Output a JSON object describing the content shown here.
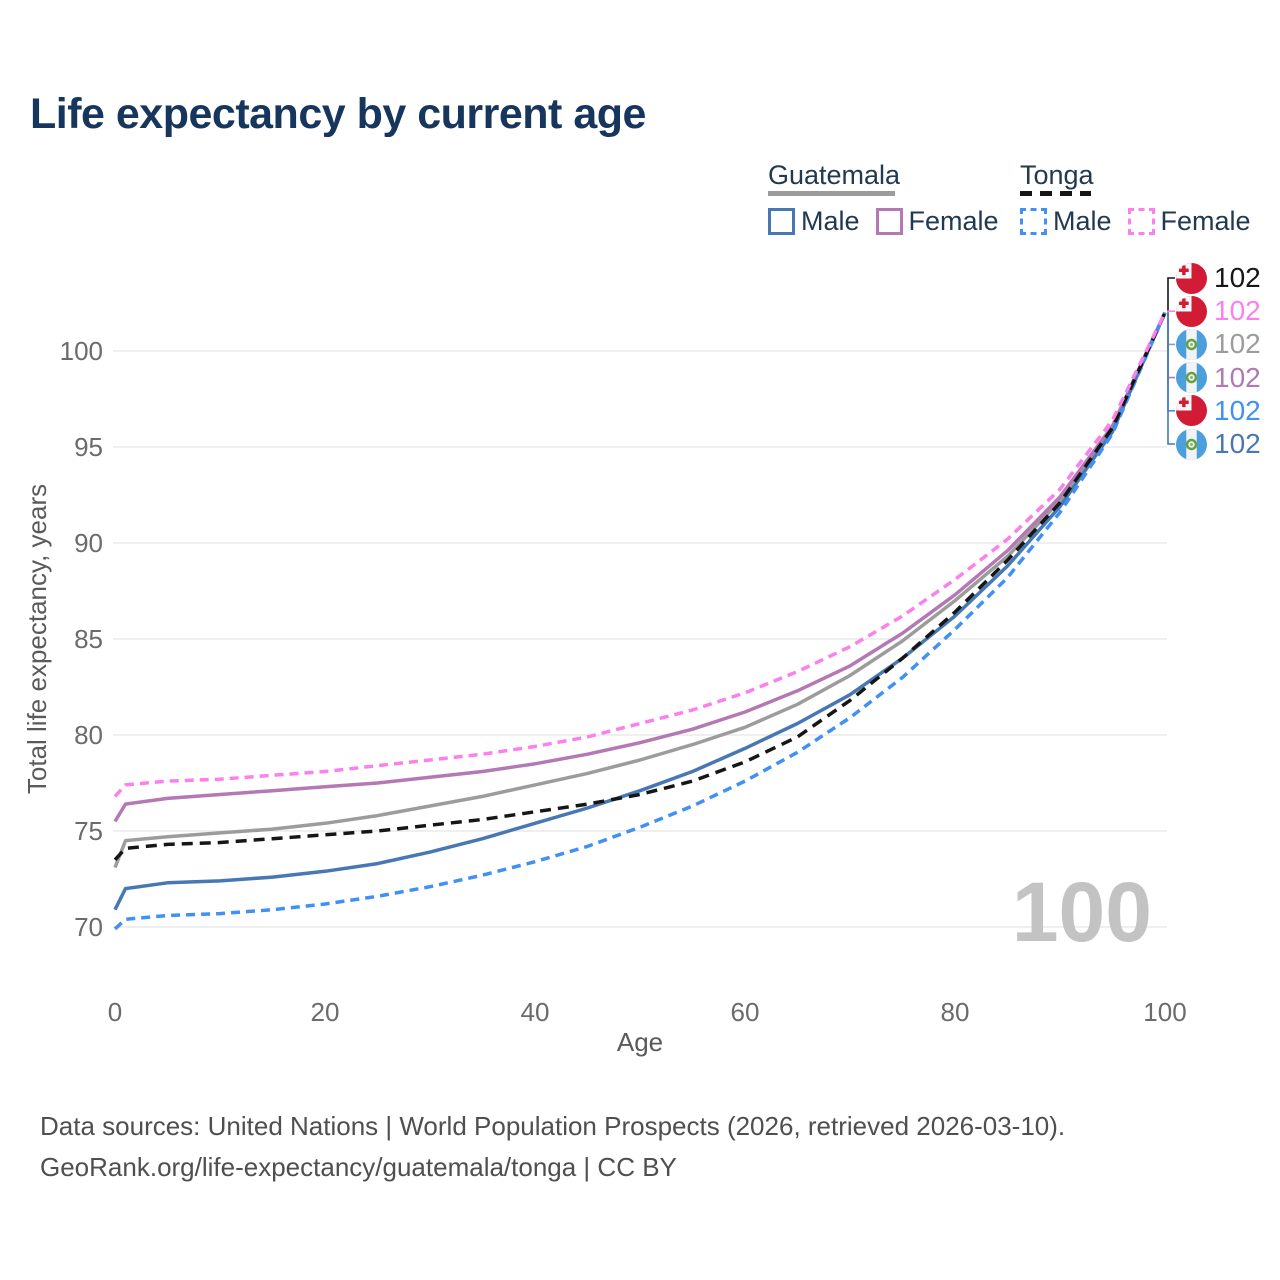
{
  "title": "Life expectancy by current age",
  "style": {
    "title_color": "#17365d",
    "legend_text_color": "#223952",
    "tick_color": "#6b6b6b",
    "axis_title_color": "#5a5a5a",
    "grid_color": "#eaeaea",
    "watermark_color": "#c3c3c3",
    "footer_color": "#4f4f4f"
  },
  "legend": {
    "groups": [
      {
        "label": "Guatemala",
        "line_style": "solid",
        "underline_color": "#9c9c9c",
        "items": [
          {
            "label": "Male",
            "color": "#4878b4"
          },
          {
            "label": "Female",
            "color": "#b478b4"
          }
        ]
      },
      {
        "label": "Tonga",
        "line_style": "dashed",
        "underline_color": "#161616",
        "items": [
          {
            "label": "Male",
            "color": "#4190f4"
          },
          {
            "label": "Female",
            "color": "#fb80ee"
          }
        ]
      }
    ]
  },
  "watermark_age": "100",
  "chart_data": {
    "type": "line",
    "title": "Life expectancy by current age",
    "xlabel": "Age",
    "ylabel": "Total life expectancy, years",
    "xlim": [
      0,
      100
    ],
    "ylim": [
      68.5,
      103
    ],
    "xticks": [
      0,
      20,
      40,
      60,
      80,
      100
    ],
    "yticks": [
      70,
      75,
      80,
      85,
      90,
      95,
      100
    ],
    "grid": "horizontal-only",
    "legend_position": "top-right",
    "x": [
      0,
      1,
      5,
      10,
      15,
      20,
      25,
      30,
      35,
      40,
      45,
      50,
      55,
      60,
      65,
      70,
      75,
      80,
      85,
      90,
      95,
      100
    ],
    "series": [
      {
        "key": "guatemala_avg",
        "name": "Guatemala Both sexes",
        "country": "Guatemala",
        "flag": "guatemala",
        "color": "#9c9c9c",
        "dashed": false,
        "end_label": "102",
        "label_row": 2,
        "values": [
          73.1,
          74.5,
          74.7,
          74.9,
          75.1,
          75.4,
          75.8,
          76.3,
          76.8,
          77.4,
          78.0,
          78.7,
          79.5,
          80.4,
          81.6,
          83.1,
          84.9,
          87.0,
          89.3,
          92.2,
          96.0,
          102
        ]
      },
      {
        "key": "guatemala_female",
        "name": "Guatemala Female",
        "country": "Guatemala",
        "flag": "guatemala",
        "color": "#b478b4",
        "dashed": false,
        "end_label": "102",
        "label_row": 3,
        "values": [
          75.5,
          76.4,
          76.7,
          76.9,
          77.1,
          77.3,
          77.5,
          77.8,
          78.1,
          78.5,
          79.0,
          79.6,
          80.3,
          81.2,
          82.3,
          83.6,
          85.3,
          87.3,
          89.6,
          92.4,
          96.1,
          102
        ]
      },
      {
        "key": "guatemala_male",
        "name": "Guatemala Male",
        "country": "Guatemala",
        "flag": "guatemala",
        "color": "#4878b4",
        "dashed": false,
        "end_label": "102",
        "label_row": 5,
        "values": [
          70.9,
          72.0,
          72.3,
          72.4,
          72.6,
          72.9,
          73.3,
          73.9,
          74.6,
          75.4,
          76.2,
          77.1,
          78.1,
          79.3,
          80.6,
          82.1,
          84.0,
          86.2,
          88.8,
          91.9,
          95.8,
          102
        ]
      },
      {
        "key": "tonga_male",
        "name": "Tonga Male",
        "country": "Tonga",
        "flag": "tonga",
        "color": "#4190f4",
        "dashed": true,
        "end_label": "102",
        "label_row": 4,
        "values": [
          69.9,
          70.4,
          70.6,
          70.7,
          70.9,
          71.2,
          71.6,
          72.1,
          72.7,
          73.4,
          74.2,
          75.2,
          76.3,
          77.6,
          79.1,
          80.9,
          83.0,
          85.5,
          88.2,
          91.6,
          95.7,
          102
        ]
      },
      {
        "key": "tonga_avg",
        "name": "Tonga Both sexes",
        "country": "Tonga",
        "flag": "tonga",
        "color": "#161616",
        "dashed": true,
        "end_label": "102",
        "label_row": 0,
        "values": [
          73.5,
          74.1,
          74.3,
          74.4,
          74.6,
          74.8,
          75.0,
          75.3,
          75.6,
          76.0,
          76.4,
          76.9,
          77.6,
          78.6,
          79.9,
          81.8,
          84.0,
          86.4,
          89.1,
          92.1,
          96.0,
          102
        ]
      },
      {
        "key": "tonga_female",
        "name": "Tonga Female",
        "country": "Tonga",
        "flag": "tonga",
        "color": "#fb80ee",
        "dashed": true,
        "end_label": "102",
        "label_row": 1,
        "values": [
          76.8,
          77.4,
          77.6,
          77.7,
          77.9,
          78.1,
          78.4,
          78.7,
          79.0,
          79.4,
          79.9,
          80.6,
          81.3,
          82.2,
          83.3,
          84.6,
          86.2,
          88.1,
          90.2,
          92.8,
          96.4,
          102
        ]
      }
    ]
  },
  "footer": {
    "line1": "Data sources: United Nations | World Population Prospects (2026, retrieved 2026-03-10).",
    "line2": "GeoRank.org/life-expectancy/guatemala/tonga | CC BY"
  }
}
